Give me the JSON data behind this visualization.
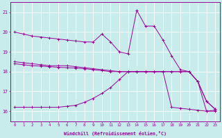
{
  "xlabel": "Windchill (Refroidissement éolien,°C)",
  "background_color": "#c8ecec",
  "grid_color": "#ffffff",
  "line_color": "#990099",
  "hours": [
    0,
    1,
    2,
    3,
    4,
    5,
    6,
    7,
    8,
    9,
    10,
    11,
    12,
    13,
    14,
    15,
    16,
    17,
    18,
    19,
    20,
    21,
    22,
    23
  ],
  "line1": [
    20.0,
    19.9,
    19.8,
    19.75,
    19.7,
    19.65,
    19.6,
    19.55,
    19.5,
    19.5,
    19.9,
    19.5,
    19.0,
    18.9,
    21.1,
    20.3,
    20.3,
    19.6,
    18.8,
    18.1,
    18.0,
    17.5,
    16.0,
    16.0
  ],
  "line2": [
    18.5,
    18.45,
    18.4,
    18.35,
    18.3,
    18.3,
    18.3,
    18.25,
    18.2,
    18.15,
    18.1,
    18.05,
    18.0,
    18.0,
    18.0,
    18.0,
    18.0,
    18.0,
    18.0,
    18.0,
    18.0,
    17.5,
    16.5,
    16.1
  ],
  "line3": [
    18.4,
    18.35,
    18.3,
    18.28,
    18.25,
    18.22,
    18.2,
    18.18,
    18.15,
    18.1,
    18.05,
    18.0,
    18.0,
    18.0,
    18.0,
    18.0,
    18.0,
    18.0,
    18.0,
    18.0,
    18.0,
    17.5,
    16.5,
    16.1
  ],
  "line4": [
    16.2,
    16.2,
    16.2,
    16.2,
    16.2,
    16.2,
    16.25,
    16.3,
    16.45,
    16.65,
    16.9,
    17.2,
    17.6,
    18.0,
    18.0,
    18.0,
    18.0,
    18.0,
    16.2,
    16.15,
    16.1,
    16.05,
    16.0,
    16.05
  ],
  "ylim": [
    15.5,
    21.5
  ],
  "yticks": [
    16,
    17,
    18,
    19,
    20,
    21
  ],
  "xticks": [
    0,
    1,
    2,
    3,
    4,
    5,
    6,
    7,
    8,
    9,
    10,
    11,
    12,
    13,
    14,
    15,
    16,
    17,
    18,
    19,
    20,
    21,
    22,
    23
  ]
}
